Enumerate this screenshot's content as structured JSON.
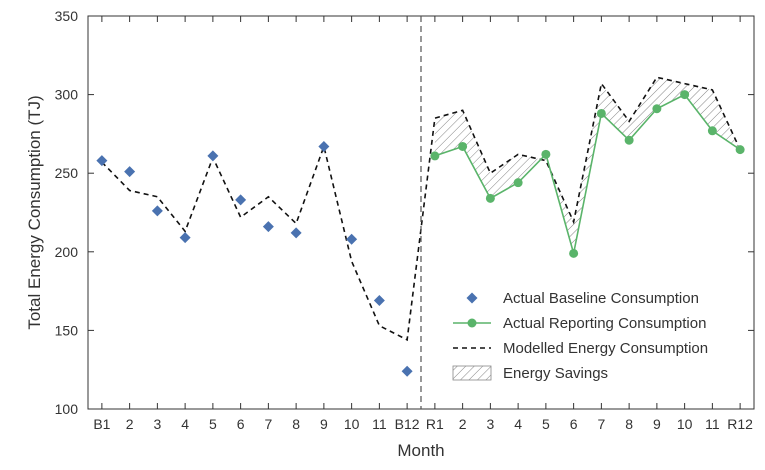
{
  "chart_data": {
    "type": "line",
    "xlabel": "Month",
    "ylabel": "Total Energy Consumption (TJ)",
    "ylim": [
      100,
      350
    ],
    "yticks": [
      100,
      150,
      200,
      250,
      300,
      350
    ],
    "categories": [
      "B1",
      "2",
      "3",
      "4",
      "5",
      "6",
      "7",
      "8",
      "9",
      "10",
      "11",
      "B12",
      "R1",
      "2",
      "3",
      "4",
      "5",
      "6",
      "7",
      "8",
      "9",
      "10",
      "11",
      "R12"
    ],
    "divider_between": [
      "B12",
      "R1"
    ],
    "grid": false,
    "legend_position": "lower-right",
    "series": [
      {
        "name": "Actual Baseline Consumption",
        "kind": "scatter",
        "marker": "diamond",
        "color": "#4a72b0",
        "x": [
          "B1",
          "2",
          "3",
          "4",
          "5",
          "6",
          "7",
          "8",
          "9",
          "10",
          "11",
          "B12"
        ],
        "values": [
          258,
          251,
          226,
          209,
          261,
          233,
          216,
          212,
          267,
          208,
          169,
          124
        ]
      },
      {
        "name": "Actual Reporting Consumption",
        "kind": "line-markers",
        "marker": "circle",
        "color": "#5ab46a",
        "x": [
          "R1",
          "2",
          "3",
          "4",
          "5",
          "6",
          "7",
          "8",
          "9",
          "10",
          "11",
          "R12"
        ],
        "values": [
          261,
          267,
          234,
          244,
          262,
          199,
          288,
          271,
          291,
          300,
          277,
          265
        ]
      },
      {
        "name": "Modelled Energy Consumption",
        "kind": "dashed-line",
        "color": "#111111",
        "x": [
          "B1",
          "2",
          "3",
          "4",
          "5",
          "6",
          "7",
          "8",
          "9",
          "10",
          "11",
          "B12",
          "R1",
          "2",
          "3",
          "4",
          "5",
          "6",
          "7",
          "8",
          "9",
          "10",
          "11",
          "R12"
        ],
        "values": [
          257,
          239,
          235,
          213,
          260,
          222,
          235,
          218,
          267,
          194,
          153,
          144,
          285,
          290,
          250,
          262,
          258,
          219,
          307,
          283,
          311,
          307,
          303,
          265
        ]
      }
    ],
    "filled_area": {
      "name": "Energy Savings",
      "between": [
        "Modelled Energy Consumption",
        "Actual Reporting Consumption"
      ],
      "pattern": "hatch"
    }
  }
}
